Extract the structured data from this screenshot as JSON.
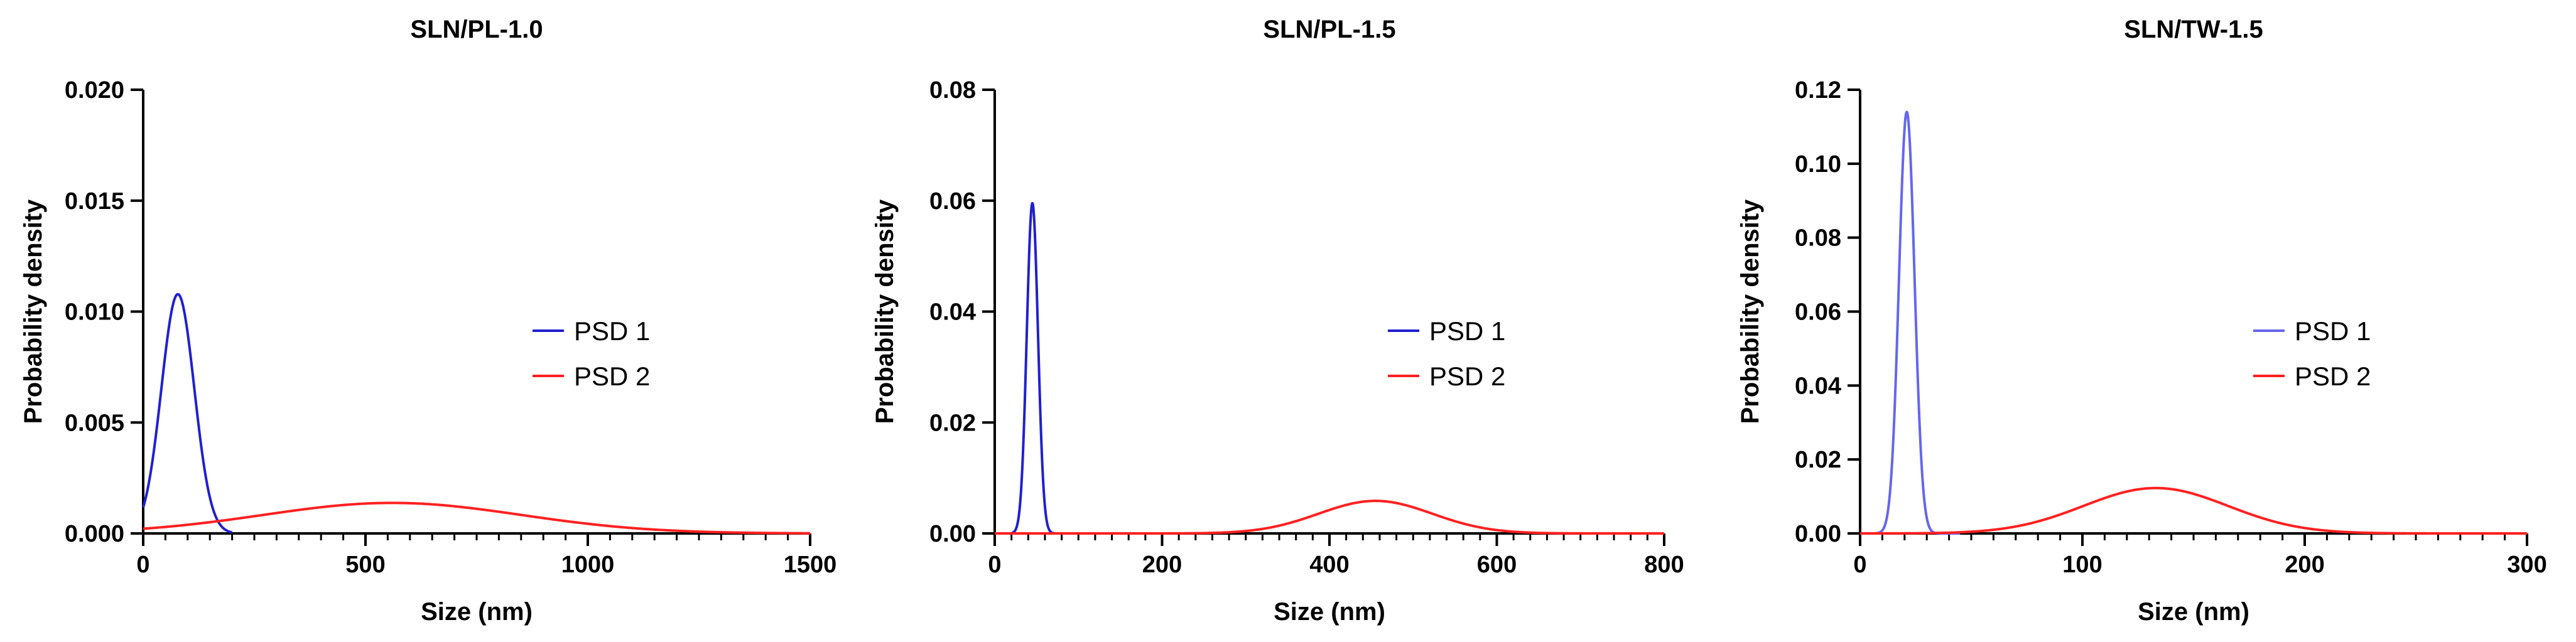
{
  "chart_data": [
    {
      "type": "line",
      "title": "SLN/PL-1.0",
      "xlabel": "Size (nm)",
      "ylabel": "Probability density",
      "xlim": [
        0,
        1500
      ],
      "ylim": [
        0,
        0.02
      ],
      "xticks": [
        0,
        500,
        1000,
        1500
      ],
      "xtick_labels": [
        "0",
        "500",
        "1000",
        "1500"
      ],
      "yticks": [
        0,
        0.005,
        0.01,
        0.015,
        0.02
      ],
      "ytick_labels": [
        "0.000",
        "0.005",
        "0.010",
        "0.015",
        "0.020"
      ],
      "x_minor_step": 50,
      "legend_position": "center-right",
      "series": [
        {
          "name": "PSD 1",
          "color": "#2020d0",
          "distribution": "normal",
          "mean": 78,
          "sd": 37,
          "x_range": [
            0,
            200
          ]
        },
        {
          "name": "PSD 2",
          "color": "#ff2020",
          "distribution": "normal",
          "mean": 560,
          "sd": 290,
          "x_range": [
            0,
            1500
          ]
        }
      ]
    },
    {
      "type": "line",
      "title": "SLN/PL-1.5",
      "xlabel": "Size (nm)",
      "ylabel": "Probability density",
      "xlim": [
        0,
        800
      ],
      "ylim": [
        0,
        0.08
      ],
      "xticks": [
        0,
        200,
        400,
        600,
        800
      ],
      "xtick_labels": [
        "0",
        "200",
        "400",
        "600",
        "800"
      ],
      "yticks": [
        0,
        0.02,
        0.04,
        0.06,
        0.08
      ],
      "ytick_labels": [
        "0.00",
        "0.02",
        "0.04",
        "0.06",
        "0.08"
      ],
      "x_minor_step": 20,
      "legend_position": "center-right",
      "series": [
        {
          "name": "PSD 1",
          "color": "#2020d0",
          "distribution": "normal",
          "mean": 45,
          "sd": 6.7,
          "x_range": [
            20,
            75
          ]
        },
        {
          "name": "PSD 2",
          "color": "#ff2020",
          "distribution": "normal",
          "mean": 455,
          "sd": 68,
          "x_range": [
            0,
            800
          ]
        }
      ]
    },
    {
      "type": "line",
      "title": "SLN/TW-1.5",
      "xlabel": "Size (nm)",
      "ylabel": "Probability density",
      "xlim": [
        0,
        300
      ],
      "ylim": [
        0,
        0.12
      ],
      "xticks": [
        0,
        100,
        200,
        300
      ],
      "xtick_labels": [
        "0",
        "100",
        "200",
        "300"
      ],
      "yticks": [
        0,
        0.02,
        0.04,
        0.06,
        0.08,
        0.1,
        0.12
      ],
      "ytick_labels": [
        "0.00",
        "0.02",
        "0.04",
        "0.06",
        "0.08",
        "0.10",
        "0.12"
      ],
      "x_minor_step": 10,
      "legend_position": "center-right",
      "series": [
        {
          "name": "PSD 1",
          "color": "#6666ee",
          "distribution": "normal",
          "mean": 21,
          "sd": 3.5,
          "x_range": [
            0,
            45
          ]
        },
        {
          "name": "PSD 2",
          "color": "#ff2020",
          "distribution": "normal",
          "mean": 133,
          "sd": 32.5,
          "x_range": [
            0,
            300
          ]
        }
      ]
    }
  ]
}
